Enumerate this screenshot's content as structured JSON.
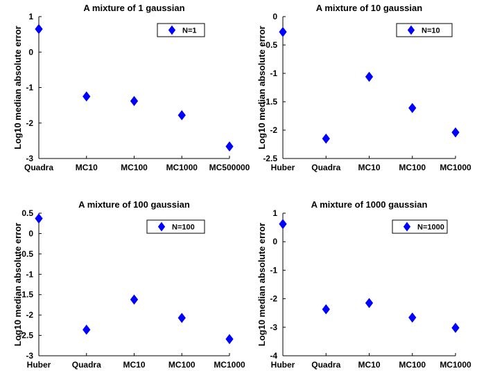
{
  "chart_data": [
    {
      "type": "scatter",
      "title": "A mixture of 1 gaussian",
      "xlabel": "",
      "ylabel": "Log10 median absolute error",
      "categories": [
        "Quadra",
        "MC10",
        "MC100",
        "MC1000",
        "MC500000"
      ],
      "ylim": [
        -3,
        1
      ],
      "yticks": [
        1,
        0,
        -1,
        -2,
        -3
      ],
      "legend_position": "top-right",
      "series": [
        {
          "name": "N=1",
          "values": [
            0.65,
            -1.25,
            -1.38,
            -1.78,
            -2.66
          ],
          "color": "#0000ff",
          "marker": "diamond"
        }
      ]
    },
    {
      "type": "scatter",
      "title": "A mixture of 10 gaussian",
      "xlabel": "",
      "ylabel": "Log10 median absolute error",
      "categories": [
        "Huber",
        "Quadra",
        "MC10",
        "MC100",
        "MC1000"
      ],
      "ylim": [
        -2.5,
        0
      ],
      "yticks": [
        0,
        -0.5,
        -1,
        -1.5,
        -2,
        -2.5
      ],
      "legend_position": "top-right",
      "series": [
        {
          "name": "N=10",
          "values": [
            -0.27,
            -2.15,
            -1.06,
            -1.61,
            -2.04
          ],
          "color": "#0000ff",
          "marker": "diamond"
        }
      ]
    },
    {
      "type": "scatter",
      "title": "A mixture of 100 gaussian",
      "xlabel": "",
      "ylabel": "Log10 median absolute error",
      "categories": [
        "Huber",
        "Quadra",
        "MC10",
        "MC100",
        "MC1000"
      ],
      "ylim": [
        -3,
        0.5
      ],
      "yticks": [
        0.5,
        0,
        -0.5,
        -1,
        -1.5,
        -2,
        -2.5,
        -3
      ],
      "legend_position": "top-right",
      "series": [
        {
          "name": "N=100",
          "values": [
            0.37,
            -2.36,
            -1.62,
            -2.07,
            -2.59
          ],
          "color": "#0000ff",
          "marker": "diamond"
        }
      ]
    },
    {
      "type": "scatter",
      "title": "A mixture of 1000 gaussian",
      "xlabel": "",
      "ylabel": "Log10 median absolute error",
      "categories": [
        "Huber",
        "Quadra",
        "MC10",
        "MC100",
        "MC1000"
      ],
      "ylim": [
        -4,
        1
      ],
      "yticks": [
        1,
        0,
        -1,
        -2,
        -3,
        -4
      ],
      "legend_position": "top-right",
      "series": [
        {
          "name": "N=1000",
          "values": [
            0.62,
            -2.37,
            -2.15,
            -2.66,
            -3.02
          ],
          "color": "#0000ff",
          "marker": "diamond"
        }
      ]
    }
  ]
}
